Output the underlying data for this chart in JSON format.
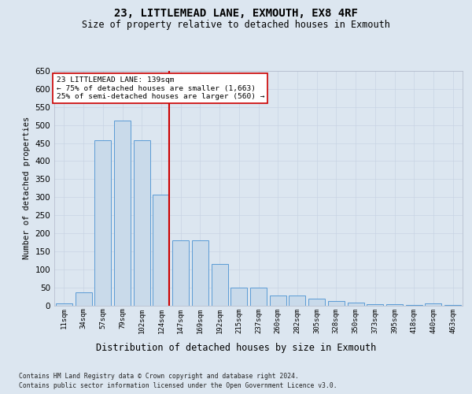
{
  "title": "23, LITTLEMEAD LANE, EXMOUTH, EX8 4RF",
  "subtitle": "Size of property relative to detached houses in Exmouth",
  "xlabel": "Distribution of detached houses by size in Exmouth",
  "ylabel": "Number of detached properties",
  "categories": [
    "11sqm",
    "34sqm",
    "57sqm",
    "79sqm",
    "102sqm",
    "124sqm",
    "147sqm",
    "169sqm",
    "192sqm",
    "215sqm",
    "237sqm",
    "260sqm",
    "282sqm",
    "305sqm",
    "328sqm",
    "350sqm",
    "373sqm",
    "395sqm",
    "418sqm",
    "440sqm",
    "463sqm"
  ],
  "values": [
    5,
    35,
    457,
    513,
    457,
    307,
    180,
    180,
    115,
    50,
    50,
    27,
    27,
    18,
    12,
    8,
    3,
    3,
    1,
    5,
    1
  ],
  "bar_color": "#c9daea",
  "bar_edge_color": "#5b9bd5",
  "vline_color": "#cc0000",
  "vline_xindex": 5.425,
  "annotation_line1": "23 LITTLEMEAD LANE: 139sqm",
  "annotation_line2": "← 75% of detached houses are smaller (1,663)",
  "annotation_line3": "25% of semi-detached houses are larger (560) →",
  "grid_color": "#c8d4e4",
  "bg_color": "#dce6f0",
  "footer1": "Contains HM Land Registry data © Crown copyright and database right 2024.",
  "footer2": "Contains public sector information licensed under the Open Government Licence v3.0.",
  "ylim": [
    0,
    650
  ],
  "yticks": [
    0,
    50,
    100,
    150,
    200,
    250,
    300,
    350,
    400,
    450,
    500,
    550,
    600,
    650
  ]
}
